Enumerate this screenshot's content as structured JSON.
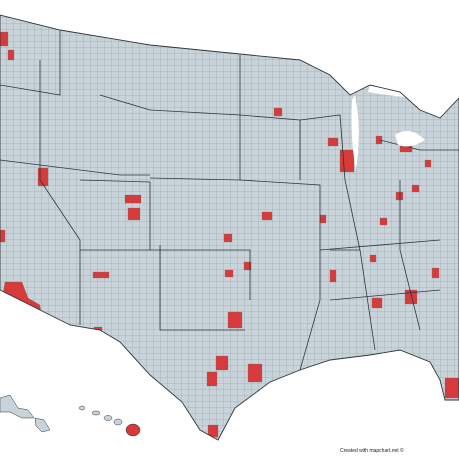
{
  "credit": "Created with mapchart.net ©"
}
